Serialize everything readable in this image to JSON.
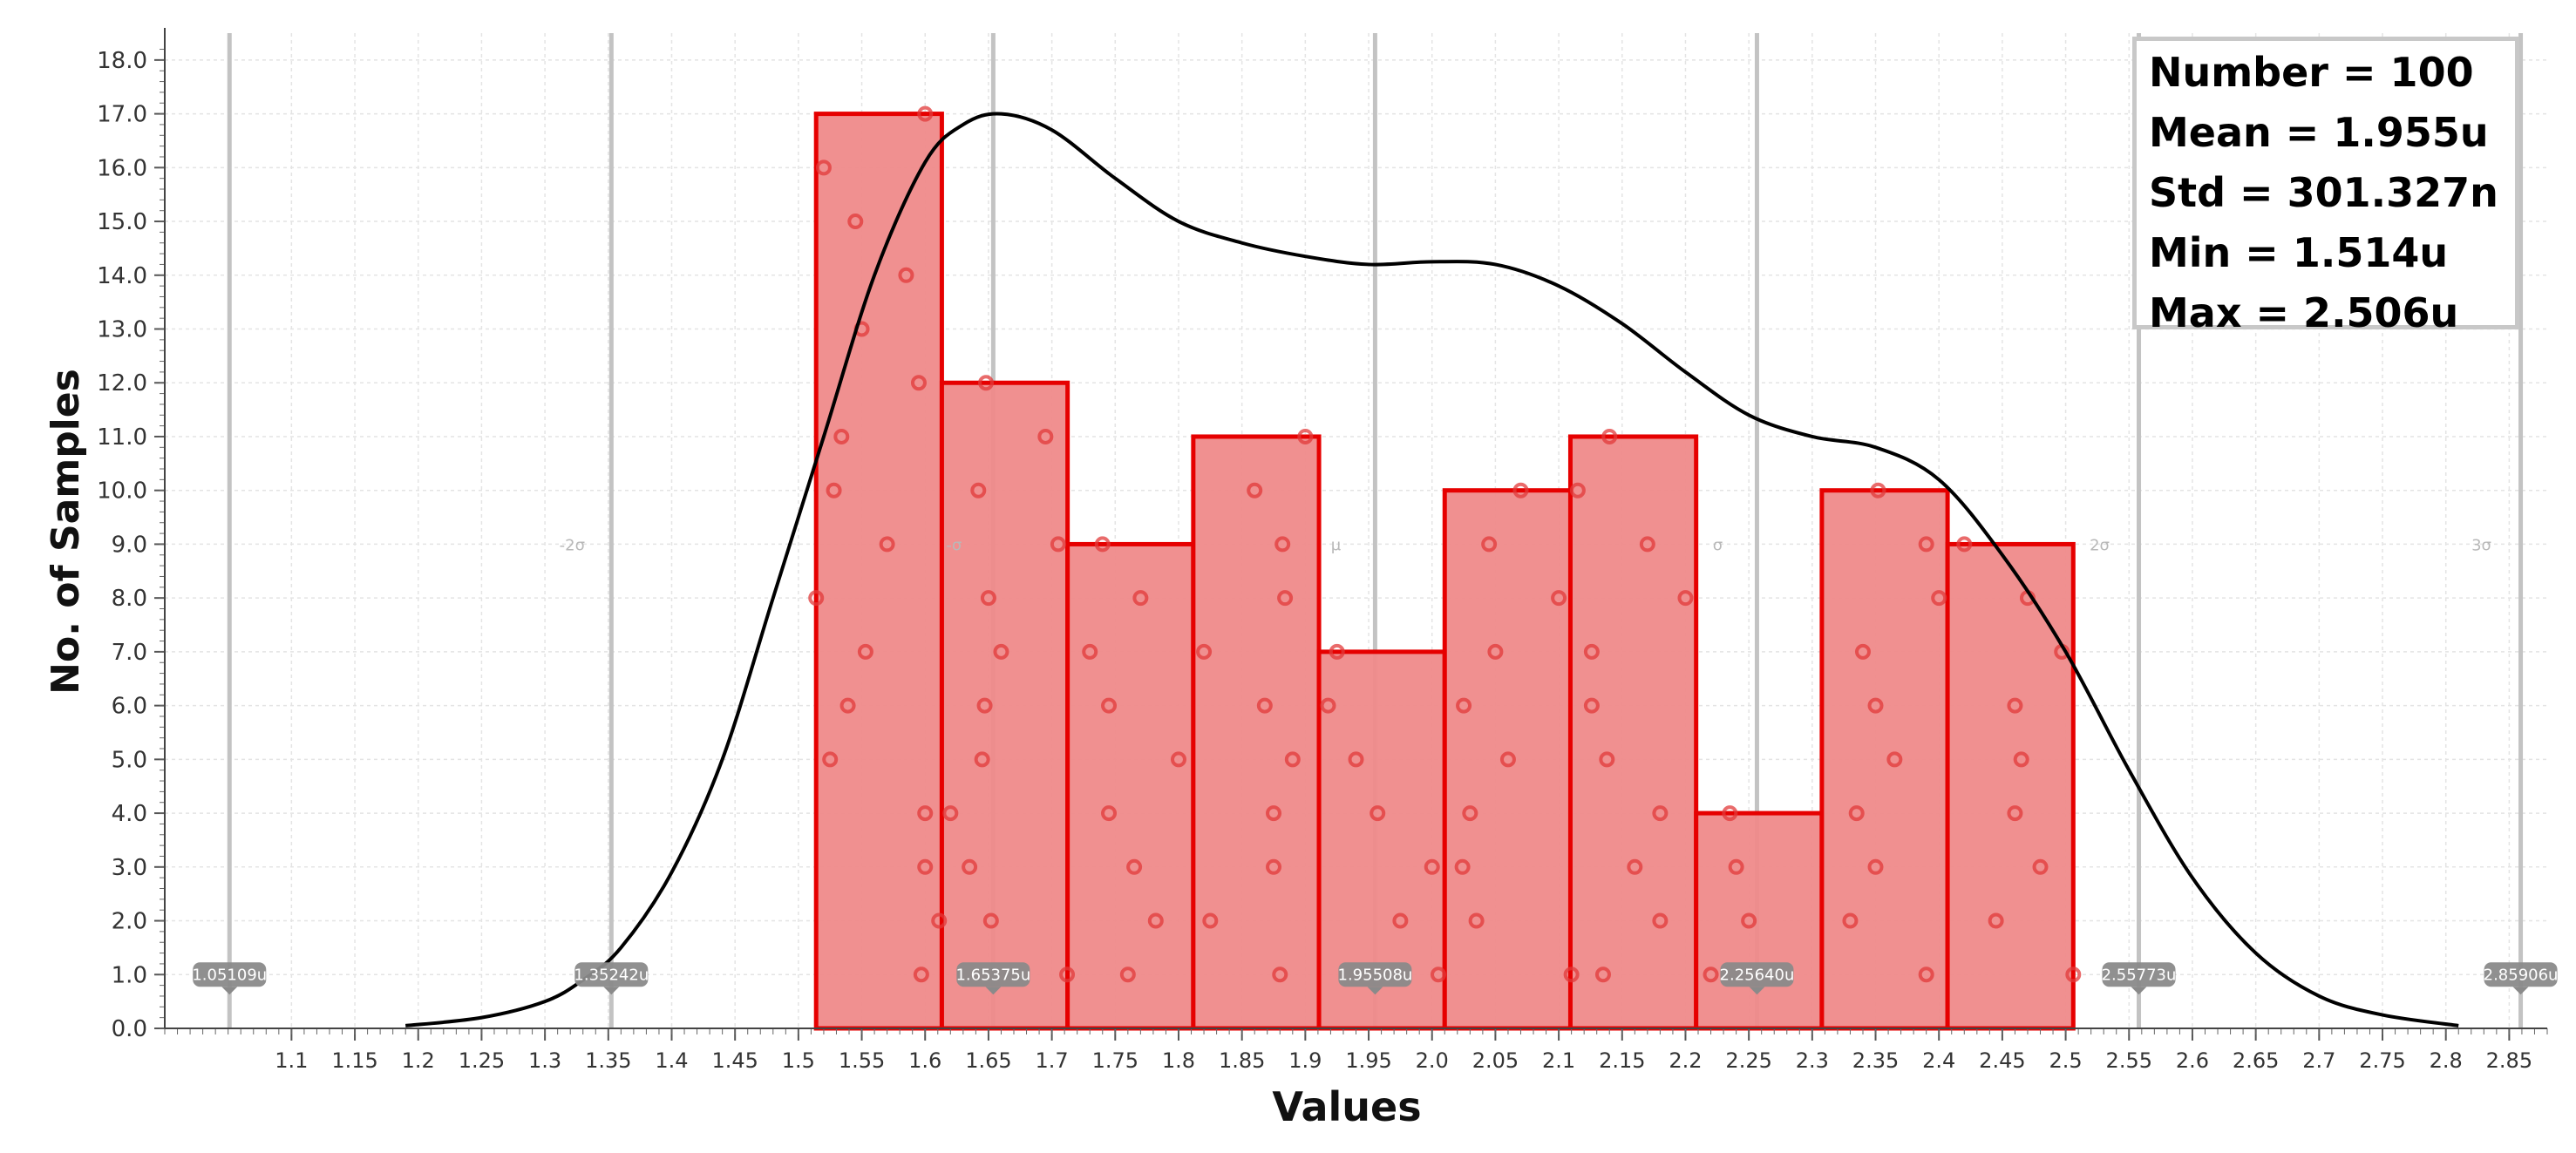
{
  "stats": {
    "number": "Number = 100",
    "mean": "Mean = 1.955u",
    "std": "Std = 301.327n",
    "min": "Min = 1.514u",
    "max": "Max = 2.506u"
  },
  "chart_data": {
    "type": "bar",
    "subtype": "histogram",
    "xlabel": "Values",
    "ylabel": "No. of Samples",
    "xlim": [
      1.0,
      2.88
    ],
    "ylim": [
      0,
      18.5
    ],
    "grid": true,
    "colors": {
      "bar_fill": "#ef8a8a",
      "bar_edge": "#e60000",
      "curve": "#000000",
      "marker_line": "#c3c3c3",
      "marker_label_bg": "#8a8a8a"
    },
    "bins": [
      {
        "x0": 1.514,
        "x1": 1.6132,
        "count": 17
      },
      {
        "x0": 1.6132,
        "x1": 1.7124,
        "count": 12
      },
      {
        "x0": 1.7124,
        "x1": 1.8116,
        "count": 9
      },
      {
        "x0": 1.8116,
        "x1": 1.9108,
        "count": 11
      },
      {
        "x0": 1.9108,
        "x1": 2.01,
        "count": 7
      },
      {
        "x0": 2.01,
        "x1": 2.1092,
        "count": 10
      },
      {
        "x0": 2.1092,
        "x1": 2.2084,
        "count": 11
      },
      {
        "x0": 2.2084,
        "x1": 2.3076,
        "count": 4
      },
      {
        "x0": 2.3076,
        "x1": 2.4068,
        "count": 10
      },
      {
        "x0": 2.4068,
        "x1": 2.506,
        "count": 9
      }
    ],
    "density_curve": [
      [
        1.19,
        0.05
      ],
      [
        1.25,
        0.2
      ],
      [
        1.3,
        0.5
      ],
      [
        1.33,
        0.9
      ],
      [
        1.36,
        1.5
      ],
      [
        1.4,
        2.9
      ],
      [
        1.44,
        5.0
      ],
      [
        1.48,
        8.0
      ],
      [
        1.52,
        11.0
      ],
      [
        1.56,
        14.0
      ],
      [
        1.6,
        16.1
      ],
      [
        1.63,
        16.8
      ],
      [
        1.66,
        17.0
      ],
      [
        1.7,
        16.7
      ],
      [
        1.75,
        15.8
      ],
      [
        1.8,
        15.0
      ],
      [
        1.85,
        14.6
      ],
      [
        1.9,
        14.35
      ],
      [
        1.95,
        14.2
      ],
      [
        2.0,
        14.25
      ],
      [
        2.05,
        14.2
      ],
      [
        2.1,
        13.8
      ],
      [
        2.15,
        13.1
      ],
      [
        2.2,
        12.2
      ],
      [
        2.25,
        11.4
      ],
      [
        2.3,
        11.0
      ],
      [
        2.35,
        10.8
      ],
      [
        2.4,
        10.2
      ],
      [
        2.45,
        8.8
      ],
      [
        2.5,
        7.0
      ],
      [
        2.55,
        4.8
      ],
      [
        2.6,
        2.8
      ],
      [
        2.65,
        1.4
      ],
      [
        2.7,
        0.6
      ],
      [
        2.75,
        0.25
      ],
      [
        2.81,
        0.05
      ]
    ],
    "sample_points": [
      [
        1.514,
        8
      ],
      [
        1.52,
        16
      ],
      [
        1.525,
        5
      ],
      [
        1.528,
        10
      ],
      [
        1.534,
        11
      ],
      [
        1.539,
        6
      ],
      [
        1.545,
        15
      ],
      [
        1.55,
        13
      ],
      [
        1.553,
        7
      ],
      [
        1.57,
        9
      ],
      [
        1.585,
        14
      ],
      [
        1.595,
        12
      ],
      [
        1.597,
        1
      ],
      [
        1.6,
        3
      ],
      [
        1.6,
        4
      ],
      [
        1.6,
        17
      ],
      [
        1.611,
        2
      ],
      [
        1.62,
        4
      ],
      [
        1.635,
        3
      ],
      [
        1.642,
        10
      ],
      [
        1.645,
        5
      ],
      [
        1.647,
        6
      ],
      [
        1.648,
        12
      ],
      [
        1.65,
        8
      ],
      [
        1.652,
        2
      ],
      [
        1.66,
        7
      ],
      [
        1.695,
        11
      ],
      [
        1.705,
        9
      ],
      [
        1.712,
        1
      ],
      [
        1.73,
        7
      ],
      [
        1.74,
        9
      ],
      [
        1.745,
        6
      ],
      [
        1.745,
        4
      ],
      [
        1.76,
        1
      ],
      [
        1.765,
        3
      ],
      [
        1.77,
        8
      ],
      [
        1.782,
        2
      ],
      [
        1.8,
        5
      ],
      [
        1.82,
        7
      ],
      [
        1.825,
        2
      ],
      [
        1.86,
        10
      ],
      [
        1.868,
        6
      ],
      [
        1.875,
        4
      ],
      [
        1.875,
        3
      ],
      [
        1.88,
        1
      ],
      [
        1.882,
        9
      ],
      [
        1.884,
        8
      ],
      [
        1.89,
        5
      ],
      [
        1.9,
        11
      ],
      [
        1.918,
        6
      ],
      [
        1.925,
        7
      ],
      [
        1.94,
        5
      ],
      [
        1.957,
        4
      ],
      [
        1.975,
        2
      ],
      [
        2.0,
        3
      ],
      [
        2.005,
        1
      ],
      [
        2.024,
        3
      ],
      [
        2.025,
        6
      ],
      [
        2.03,
        4
      ],
      [
        2.035,
        2
      ],
      [
        2.045,
        9
      ],
      [
        2.05,
        7
      ],
      [
        2.06,
        5
      ],
      [
        2.07,
        10
      ],
      [
        2.1,
        8
      ],
      [
        2.11,
        1
      ],
      [
        2.115,
        10
      ],
      [
        2.126,
        7
      ],
      [
        2.126,
        6
      ],
      [
        2.135,
        1
      ],
      [
        2.138,
        5
      ],
      [
        2.14,
        11
      ],
      [
        2.16,
        3
      ],
      [
        2.17,
        9
      ],
      [
        2.18,
        2
      ],
      [
        2.18,
        4
      ],
      [
        2.2,
        8
      ],
      [
        2.22,
        1
      ],
      [
        2.235,
        4
      ],
      [
        2.24,
        3
      ],
      [
        2.25,
        2
      ],
      [
        2.33,
        2
      ],
      [
        2.335,
        4
      ],
      [
        2.34,
        7
      ],
      [
        2.35,
        6
      ],
      [
        2.35,
        3
      ],
      [
        2.352,
        10
      ],
      [
        2.365,
        5
      ],
      [
        2.39,
        1
      ],
      [
        2.39,
        9
      ],
      [
        2.4,
        8
      ],
      [
        2.42,
        9
      ],
      [
        2.445,
        2
      ],
      [
        2.46,
        6
      ],
      [
        2.46,
        4
      ],
      [
        2.465,
        5
      ],
      [
        2.47,
        8
      ],
      [
        2.48,
        3
      ],
      [
        2.497,
        7
      ],
      [
        2.506,
        1
      ]
    ],
    "markers": [
      {
        "x": 1.05109,
        "label": "1.05109u"
      },
      {
        "x": 1.35242,
        "label": "1.35242u",
        "sigma_label": "-2σ"
      },
      {
        "x": 1.65375,
        "label": "1.65375u",
        "sigma_label": "-σ"
      },
      {
        "x": 1.95508,
        "label": "1.95508u",
        "sigma_label": "μ"
      },
      {
        "x": 2.2564,
        "label": "2.25640u",
        "sigma_label": "σ"
      },
      {
        "x": 2.55773,
        "label": "2.55773u",
        "sigma_label": "2σ"
      },
      {
        "x": 2.85906,
        "label": "2.85906u",
        "sigma_label": "3σ"
      }
    ],
    "y_ticks": [
      "0.0",
      "1.0",
      "2.0",
      "3.0",
      "4.0",
      "5.0",
      "6.0",
      "7.0",
      "8.0",
      "9.0",
      "10.0",
      "11.0",
      "12.0",
      "13.0",
      "14.0",
      "15.0",
      "16.0",
      "17.0",
      "18.0"
    ],
    "x_ticks": [
      "1.1",
      "1.15",
      "1.2",
      "1.25",
      "1.3",
      "1.35",
      "1.4",
      "1.45",
      "1.5",
      "1.55",
      "1.6",
      "1.65",
      "1.7",
      "1.75",
      "1.8",
      "1.85",
      "1.9",
      "1.95",
      "2.0",
      "2.05",
      "2.1",
      "2.15",
      "2.2",
      "2.25",
      "2.3",
      "2.35",
      "2.4",
      "2.45",
      "2.5",
      "2.55",
      "2.6",
      "2.65",
      "2.7",
      "2.75",
      "2.8",
      "2.85"
    ]
  }
}
